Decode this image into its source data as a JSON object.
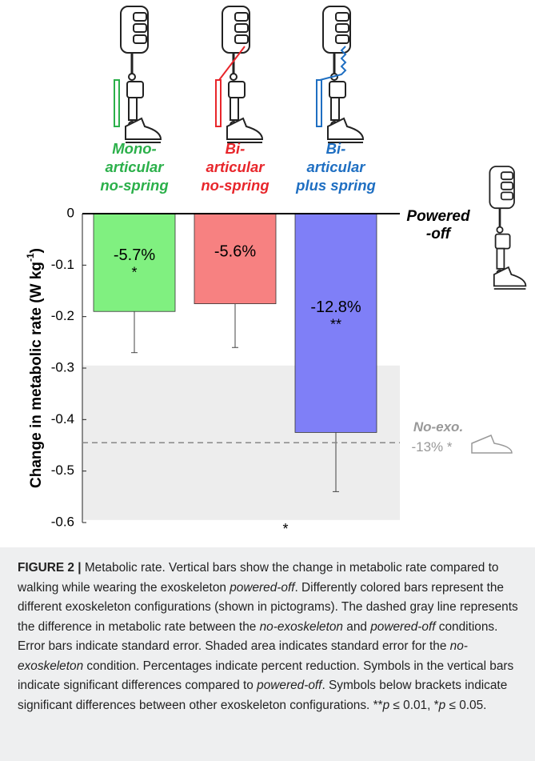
{
  "chart_data": {
    "type": "bar",
    "y_label": "Change in metabolic rate (W kg",
    "y_label_sup": "-1",
    "y_label_end": ")",
    "categories": [
      [
        "Mono-",
        "articular",
        "no-spring"
      ],
      [
        "Bi-",
        "articular",
        "no-spring"
      ],
      [
        "Bi-",
        "articular",
        "plus spring"
      ]
    ],
    "category_colors": [
      "#2bb04a",
      "#e8262b",
      "#1f6fc2"
    ],
    "colors": [
      "#80f080",
      "#f78181",
      "#7f7ff7"
    ],
    "values": [
      -0.19,
      -0.175,
      -0.425
    ],
    "errors": [
      0.08,
      0.085,
      0.115
    ],
    "bar_labels": [
      "-5.7%",
      "-5.6%",
      "-12.8%"
    ],
    "bar_stars": [
      "*",
      null,
      "**"
    ],
    "ylim": [
      -0.6,
      0
    ],
    "yticks": [
      0,
      -0.1,
      -0.2,
      -0.3,
      -0.4,
      -0.5,
      -0.6
    ],
    "baseline_label": [
      "Powered",
      "-off"
    ],
    "reference": {
      "label": "No-exo.",
      "note": "-13% *",
      "value": -0.445
    },
    "shade": [
      -0.295,
      -0.595
    ],
    "bracket_label": "*"
  },
  "caption": [
    {
      "text": "FIGURE 2 |",
      "style": "bold"
    },
    {
      "text": " Metabolic rate. Vertical bars show the change in metabolic rate compared to walking while wearing the exoskeleton ",
      "style": "normal"
    },
    {
      "text": "powered-off",
      "style": "italic"
    },
    {
      "text": ". Differently colored bars represent the different exoskeleton configurations (shown in pictograms). The dashed gray line represents the difference in metabolic rate between the ",
      "style": "normal"
    },
    {
      "text": "no-exoskeleton",
      "style": "italic"
    },
    {
      "text": " and ",
      "style": "normal"
    },
    {
      "text": "powered-off",
      "style": "italic"
    },
    {
      "text": " conditions. Error bars indicate standard error. Shaded area indicates standard error for the ",
      "style": "normal"
    },
    {
      "text": "no-exoskeleton",
      "style": "italic"
    },
    {
      "text": " condition. Percentages indicate percent reduction. Symbols in the vertical bars indicate significant differences compared to ",
      "style": "normal"
    },
    {
      "text": "powered-off",
      "style": "italic"
    },
    {
      "text": ". Symbols below brackets indicate significant differences between other exoskeleton configurations. **",
      "style": "normal"
    },
    {
      "text": "p",
      "style": "italic"
    },
    {
      "text": " ≤ 0.01, *",
      "style": "normal"
    },
    {
      "text": "p",
      "style": "italic"
    },
    {
      "text": " ≤ 0.05.",
      "style": "normal"
    }
  ]
}
